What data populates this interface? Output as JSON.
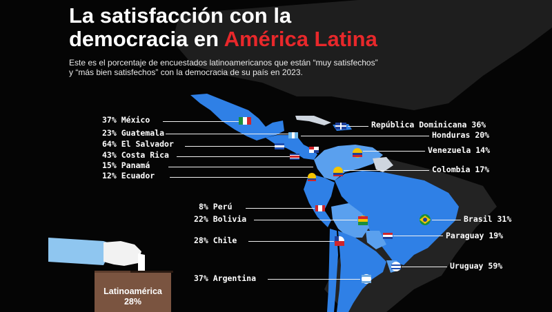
{
  "title": {
    "line1": "La satisfacción con la",
    "line2_start": "democracia en ",
    "line2_accent": "América Latina"
  },
  "subtitle": {
    "line1": "Este es el porcentaje de encuestados latinoamericanos que están “muy satisfechos”",
    "line2": "y “más bien satisfechos” con la democracia de su país en 2023."
  },
  "colors": {
    "accent": "#e8282b",
    "country_fill": "#2f80e6",
    "country_light": "#5aa0ee",
    "land_dark": "#222222",
    "background": "#050505",
    "ballot": "#7a5440"
  },
  "countries": [
    {
      "id": "mexico",
      "pct": "37%",
      "name": "México"
    },
    {
      "id": "guatemala",
      "pct": "23%",
      "name": "Guatemala"
    },
    {
      "id": "el-salvador",
      "pct": "64%",
      "name": "El Salvador"
    },
    {
      "id": "costa-rica",
      "pct": "43%",
      "name": "Costa Rica"
    },
    {
      "id": "panama",
      "pct": "15%",
      "name": "Panamá"
    },
    {
      "id": "ecuador",
      "pct": "12%",
      "name": "Ecuador"
    },
    {
      "id": "republica-dominicana",
      "pct": "36%",
      "name": "República Dominicana"
    },
    {
      "id": "honduras",
      "pct": "20%",
      "name": "Honduras"
    },
    {
      "id": "venezuela",
      "pct": "14%",
      "name": "Venezuela"
    },
    {
      "id": "colombia",
      "pct": "17%",
      "name": "Colombia"
    },
    {
      "id": "peru",
      "pct": "8%",
      "name": "Perú"
    },
    {
      "id": "bolivia",
      "pct": "22%",
      "name": "Bolivia"
    },
    {
      "id": "chile",
      "pct": "28%",
      "name": "Chile"
    },
    {
      "id": "argentina",
      "pct": "37%",
      "name": "Argentina"
    },
    {
      "id": "brasil",
      "pct": "31%",
      "name": "Brasil"
    },
    {
      "id": "paraguay",
      "pct": "19%",
      "name": "Paraguay"
    },
    {
      "id": "uruguay",
      "pct": "59%",
      "name": "Uruguay"
    }
  ],
  "ballot": {
    "label": "Latinoamérica",
    "pct": "28%"
  },
  "icons": [
    "ballot-box-icon",
    "hand-icon",
    "flag-icons"
  ]
}
